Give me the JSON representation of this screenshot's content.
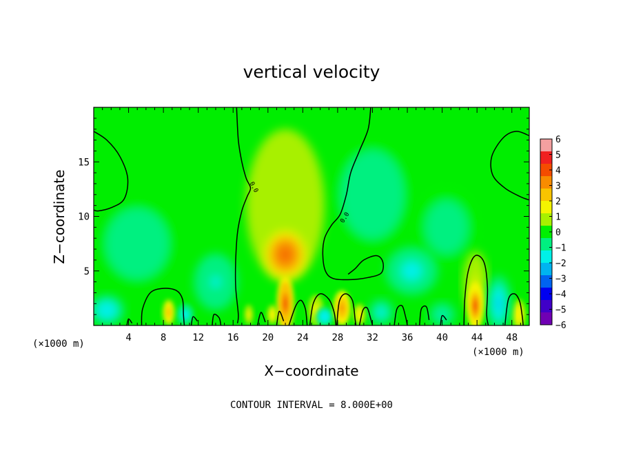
{
  "chart_data": {
    "type": "heatmap",
    "title": "vertical velocity",
    "xlabel": "X−coordinate",
    "ylabel": "Z−coordinate",
    "x_unit_left": "(×1000 m)",
    "x_unit_right": "(×1000 m)",
    "xlim": [
      0,
      50
    ],
    "ylim": [
      0,
      20
    ],
    "x_ticks": [
      4,
      8,
      12,
      16,
      20,
      24,
      28,
      32,
      36,
      40,
      44,
      48
    ],
    "y_ticks": [
      5,
      10,
      15
    ],
    "footer": "CONTOUR INTERVAL = 8.000E+00",
    "contour_label": "0.0",
    "colorbar": {
      "min": -6,
      "max": 6,
      "ticks": [
        "6",
        "5",
        "4",
        "3",
        "2",
        "1",
        "0",
        "−1",
        "−2",
        "−3",
        "−4",
        "−5",
        "−6"
      ],
      "colors": [
        "#f4a0a0",
        "#f02020",
        "#f44c00",
        "#f88c00",
        "#f8c400",
        "#f4f400",
        "#a8f000",
        "#00f000",
        "#00f080",
        "#00f0e8",
        "#00b4f0",
        "#0064f0",
        "#0000f0",
        "#4000c8",
        "#7000b4"
      ]
    },
    "features": [
      {
        "kind": "updraft",
        "x": 22,
        "z": 6.5,
        "rx": 2.4,
        "rz": 2.2,
        "peak": 4.2
      },
      {
        "kind": "updraft",
        "x": 22,
        "z": 2.0,
        "rx": 1.0,
        "rz": 2.6,
        "peak": 4.0
      },
      {
        "kind": "updraft",
        "x": 22,
        "z": 11.0,
        "rx": 4.5,
        "rz": 7.0,
        "peak": 1.0
      },
      {
        "kind": "updraft",
        "x": 43.8,
        "z": 1.8,
        "rx": 1.0,
        "rz": 2.2,
        "peak": 3.6
      },
      {
        "kind": "updraft",
        "x": 43.8,
        "z": 4.0,
        "rx": 1.4,
        "rz": 2.8,
        "peak": 1.2
      },
      {
        "kind": "updraft",
        "x": 28.5,
        "z": 1.6,
        "rx": 1.0,
        "rz": 1.6,
        "peak": 3.2
      },
      {
        "kind": "updraft",
        "x": 8.6,
        "z": 1.2,
        "rx": 0.7,
        "rz": 1.2,
        "peak": 2.6
      },
      {
        "kind": "updraft",
        "x": 30.5,
        "z": 1.0,
        "rx": 0.7,
        "rz": 1.0,
        "peak": 2.0
      },
      {
        "kind": "updraft",
        "x": 48.8,
        "z": 1.0,
        "rx": 0.8,
        "rz": 1.4,
        "peak": 2.0
      },
      {
        "kind": "updraft",
        "x": 17.8,
        "z": 1.0,
        "rx": 0.5,
        "rz": 0.9,
        "peak": 1.6
      },
      {
        "kind": "updraft",
        "x": 20.5,
        "z": 1.0,
        "rx": 0.6,
        "rz": 0.9,
        "peak": 1.8
      },
      {
        "kind": "updraft",
        "x": 25.5,
        "z": 1.4,
        "rx": 0.9,
        "rz": 1.4,
        "peak": 1.6
      },
      {
        "kind": "downdraft",
        "x": 1.5,
        "z": 1.4,
        "rx": 2.0,
        "rz": 1.4,
        "peak": -1.8
      },
      {
        "kind": "downdraft",
        "x": 14.0,
        "z": 4.0,
        "rx": 2.5,
        "rz": 2.6,
        "peak": -1.4
      },
      {
        "kind": "downdraft",
        "x": 36.5,
        "z": 5.0,
        "rx": 3.0,
        "rz": 2.2,
        "peak": -1.6
      },
      {
        "kind": "downdraft",
        "x": 46.5,
        "z": 2.0,
        "rx": 1.4,
        "rz": 2.6,
        "peak": -2.0
      },
      {
        "kind": "downdraft",
        "x": 10.5,
        "z": 1.0,
        "rx": 1.0,
        "rz": 1.0,
        "peak": -1.6
      },
      {
        "kind": "downdraft",
        "x": 26.5,
        "z": 0.8,
        "rx": 1.0,
        "rz": 0.9,
        "peak": -1.8
      },
      {
        "kind": "downdraft",
        "x": 33.0,
        "z": 1.2,
        "rx": 1.4,
        "rz": 1.2,
        "peak": -1.6
      },
      {
        "kind": "downdraft",
        "x": 40.0,
        "z": 1.0,
        "rx": 1.5,
        "rz": 1.1,
        "peak": -1.4
      },
      {
        "kind": "downdraft",
        "x": 5.0,
        "z": 7.5,
        "rx": 4.5,
        "rz": 4.0,
        "peak": -0.8
      },
      {
        "kind": "downdraft",
        "x": 32.0,
        "z": 12.0,
        "rx": 4.5,
        "rz": 5.0,
        "peak": -0.8
      },
      {
        "kind": "downdraft",
        "x": 40.5,
        "z": 9.0,
        "rx": 4.0,
        "rz": 4.0,
        "peak": -0.7
      }
    ]
  }
}
